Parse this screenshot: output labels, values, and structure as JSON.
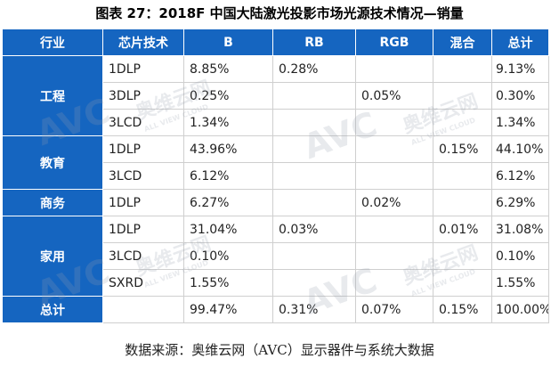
{
  "title": "图表 27：2018F 中国大陆激光投影市场光源技术情况—销量",
  "headers": [
    "行业",
    "芯片技术",
    "B",
    "RB",
    "RGB",
    "混合",
    "总计"
  ],
  "groups": [
    {
      "name": "工程",
      "rows": [
        {
          "chip": "1DLP",
          "b": "8.85%",
          "rb": "0.28%",
          "rgb": "",
          "mix": "",
          "total": "9.13%"
        },
        {
          "chip": "3DLP",
          "b": "0.25%",
          "rb": "",
          "rgb": "0.05%",
          "mix": "",
          "total": "0.30%"
        },
        {
          "chip": "3LCD",
          "b": "1.34%",
          "rb": "",
          "rgb": "",
          "mix": "",
          "total": "1.34%"
        }
      ]
    },
    {
      "name": "教育",
      "rows": [
        {
          "chip": "1DLP",
          "b": "43.96%",
          "rb": "",
          "rgb": "",
          "mix": "0.15%",
          "total": "44.10%"
        },
        {
          "chip": "3LCD",
          "b": "6.12%",
          "rb": "",
          "rgb": "",
          "mix": "",
          "total": "6.12%"
        }
      ]
    },
    {
      "name": "商务",
      "rows": [
        {
          "chip": "1DLP",
          "b": "6.27%",
          "rb": "",
          "rgb": "0.02%",
          "mix": "",
          "total": "6.29%"
        }
      ]
    },
    {
      "name": "家用",
      "rows": [
        {
          "chip": "1DLP",
          "b": "31.04%",
          "rb": "0.03%",
          "rgb": "",
          "mix": "0.01%",
          "total": "31.08%"
        },
        {
          "chip": "3LCD",
          "b": "0.10%",
          "rb": "",
          "rgb": "",
          "mix": "",
          "total": "0.10%"
        },
        {
          "chip": "SXRD",
          "b": "1.55%",
          "rb": "",
          "rgb": "",
          "mix": "",
          "total": "1.55%"
        }
      ]
    }
  ],
  "total_row": {
    "label": "总计",
    "chip": "",
    "b": "99.47%",
    "rb": "0.31%",
    "rgb": "0.07%",
    "mix": "0.15%",
    "total": "100.00%"
  },
  "source": "数据来源：奥维云网（AVC）显示器件与系统大数据",
  "watermark": {
    "logo": "AVC",
    "brand": "奥维云网",
    "sub": "ALL VIEW CLOUD"
  },
  "colors": {
    "header_bg": "#1565c0",
    "header_text": "#ffffff"
  }
}
